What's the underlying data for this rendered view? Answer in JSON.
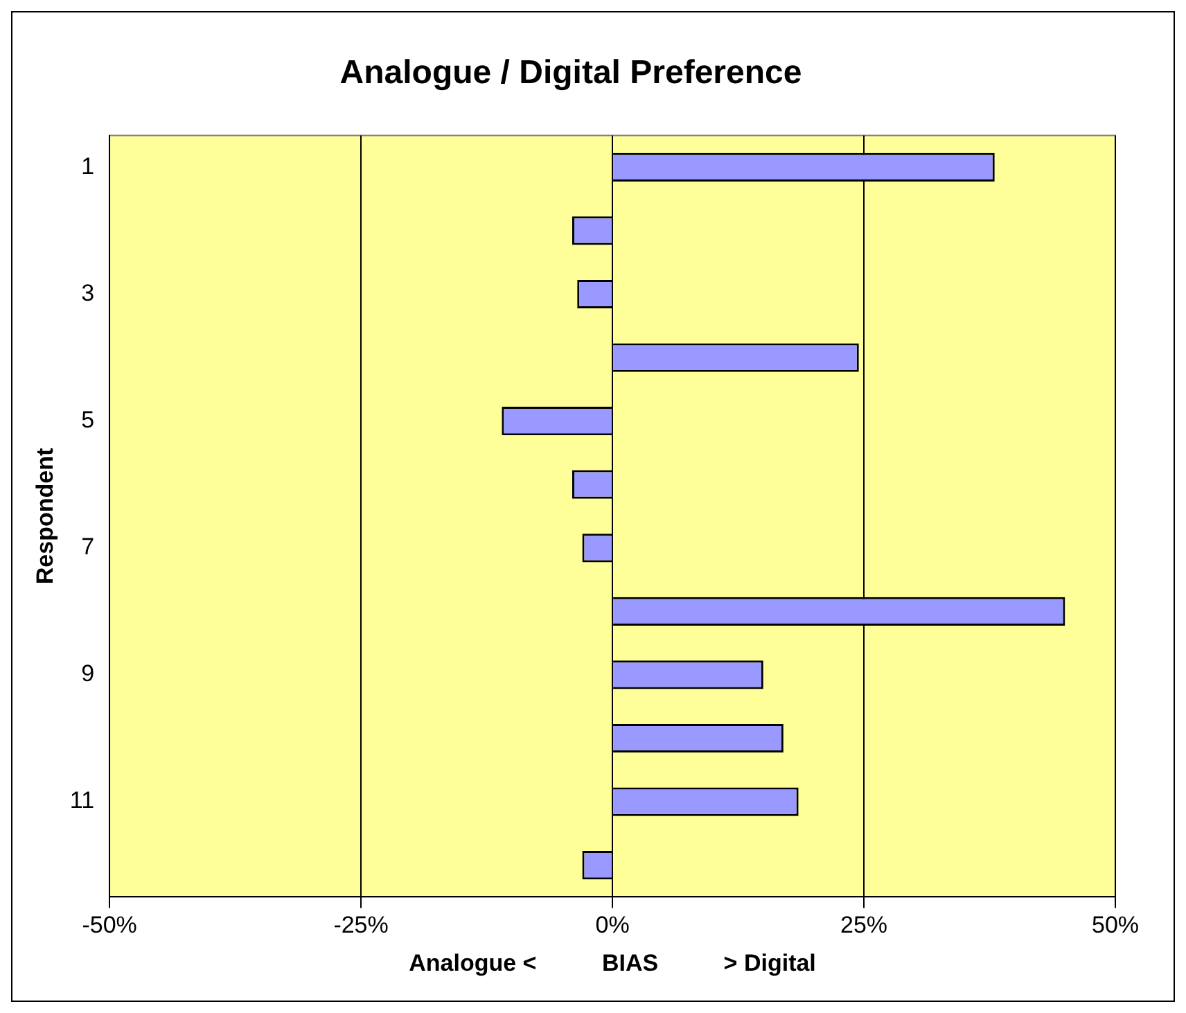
{
  "chart_data": {
    "type": "bar",
    "orientation": "horizontal",
    "title": "Analogue / Digital Preference",
    "xlabel": "Analogue <          BIAS          > Digital",
    "ylabel": "Respondent",
    "categories": [
      "1",
      null,
      "3",
      null,
      "5",
      null,
      "7",
      null,
      "9",
      null,
      "11",
      null
    ],
    "values": [
      38,
      -4,
      -3.5,
      24.5,
      -11,
      -4,
      -3,
      45,
      15,
      17,
      18.5,
      -3
    ],
    "color": "#9999ff",
    "xlim": [
      -50,
      50
    ],
    "xticks": [
      {
        "value": -50,
        "label": "-50%"
      },
      {
        "value": -25,
        "label": "-25%"
      },
      {
        "value": 0,
        "label": "0%"
      },
      {
        "value": 25,
        "label": "25%"
      },
      {
        "value": 50,
        "label": "50%"
      }
    ],
    "grid": "x",
    "legend": false
  }
}
